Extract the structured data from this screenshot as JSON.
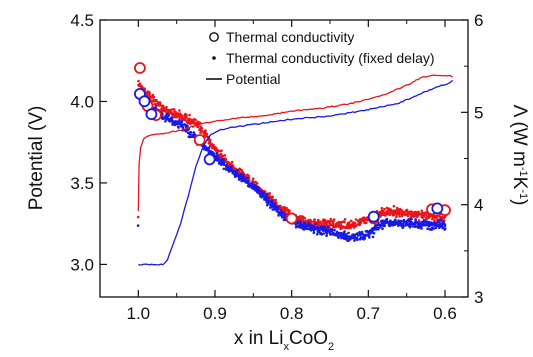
{
  "chart_data": {
    "type": "scatter",
    "x_reversed": true,
    "xlim": [
      1.05,
      0.57
    ],
    "ylim_left": [
      2.8,
      4.5
    ],
    "ylim_right": [
      3,
      6
    ],
    "x_ticks": [
      {
        "value": 1.0,
        "label": "1.0"
      },
      {
        "value": 0.9,
        "label": "0.9"
      },
      {
        "value": 0.8,
        "label": "0.8"
      },
      {
        "value": 0.7,
        "label": "0.7"
      },
      {
        "value": 0.6,
        "label": "0.6"
      }
    ],
    "y_ticks_left": [
      {
        "value": 3.0,
        "label": "3.0"
      },
      {
        "value": 3.5,
        "label": "3.5"
      },
      {
        "value": 4.0,
        "label": "4.0"
      },
      {
        "value": 4.5,
        "label": "4.5"
      }
    ],
    "y_ticks_right": [
      {
        "value": 3,
        "label": "3"
      },
      {
        "value": 4,
        "label": "4"
      },
      {
        "value": 5,
        "label": "5"
      },
      {
        "value": 6,
        "label": "6"
      }
    ],
    "xlabel": {
      "main": "x in Li",
      "sub1": "x",
      "mid": "CoO",
      "sub2": "2"
    },
    "ylabel_left": "Potential (V)",
    "ylabel_right": {
      "main": "Λ (W m",
      "sup1": "-1",
      "mid": "K",
      "sup2": "-1",
      "end": ")"
    },
    "legend": [
      {
        "marker": "circle",
        "label": "Thermal conductivity"
      },
      {
        "marker": "dot",
        "label": "Thermal conductivity (fixed delay)"
      },
      {
        "marker": "line",
        "label": "Potential"
      }
    ],
    "colors": {
      "red": "#e8161b",
      "blue": "#1a1ae6",
      "axis": "#111111"
    },
    "series": [
      {
        "color": "red",
        "kind": "potential",
        "points": [
          [
            1.0,
            3.33
          ],
          [
            0.999,
            3.62
          ],
          [
            0.997,
            3.72
          ],
          [
            0.993,
            3.77
          ],
          [
            0.987,
            3.79
          ],
          [
            0.975,
            3.8
          ],
          [
            0.96,
            3.81
          ],
          [
            0.94,
            3.83
          ],
          [
            0.92,
            3.86
          ],
          [
            0.9,
            3.88
          ],
          [
            0.87,
            3.9
          ],
          [
            0.84,
            3.91
          ],
          [
            0.8,
            3.94
          ],
          [
            0.76,
            3.96
          ],
          [
            0.72,
            3.99
          ],
          [
            0.68,
            4.04
          ],
          [
            0.65,
            4.1
          ],
          [
            0.63,
            4.15
          ],
          [
            0.61,
            4.16
          ],
          [
            0.595,
            4.16
          ],
          [
            0.59,
            4.15
          ]
        ]
      },
      {
        "color": "blue",
        "kind": "potential",
        "points": [
          [
            1.0,
            3.0
          ],
          [
            0.985,
            3.0
          ],
          [
            0.968,
            3.0
          ],
          [
            0.962,
            3.03
          ],
          [
            0.955,
            3.12
          ],
          [
            0.945,
            3.25
          ],
          [
            0.935,
            3.42
          ],
          [
            0.925,
            3.6
          ],
          [
            0.915,
            3.73
          ],
          [
            0.905,
            3.8
          ],
          [
            0.895,
            3.82
          ],
          [
            0.88,
            3.84
          ],
          [
            0.85,
            3.86
          ],
          [
            0.8,
            3.89
          ],
          [
            0.75,
            3.91
          ],
          [
            0.7,
            3.95
          ],
          [
            0.66,
            3.99
          ],
          [
            0.63,
            4.05
          ],
          [
            0.61,
            4.09
          ],
          [
            0.595,
            4.11
          ],
          [
            0.59,
            4.13
          ]
        ]
      },
      {
        "color": "red",
        "kind": "conductivity_fixed_delay",
        "points": [
          [
            1.0,
            5.3
          ],
          [
            0.98,
            5.12
          ],
          [
            0.96,
            5.0
          ],
          [
            0.94,
            4.95
          ],
          [
            0.92,
            4.85
          ],
          [
            0.9,
            4.6
          ],
          [
            0.88,
            4.42
          ],
          [
            0.86,
            4.3
          ],
          [
            0.84,
            4.15
          ],
          [
            0.82,
            4.0
          ],
          [
            0.8,
            3.88
          ],
          [
            0.78,
            3.8
          ],
          [
            0.76,
            3.8
          ],
          [
            0.74,
            3.78
          ],
          [
            0.72,
            3.78
          ],
          [
            0.7,
            3.85
          ],
          [
            0.68,
            3.92
          ],
          [
            0.66,
            3.92
          ],
          [
            0.64,
            3.9
          ],
          [
            0.62,
            3.88
          ],
          [
            0.6,
            3.85
          ]
        ],
        "spread": 0.07
      },
      {
        "color": "blue",
        "kind": "conductivity_fixed_delay",
        "points": [
          [
            1.0,
            5.15
          ],
          [
            0.98,
            5.02
          ],
          [
            0.96,
            4.92
          ],
          [
            0.94,
            4.84
          ],
          [
            0.92,
            4.68
          ],
          [
            0.9,
            4.52
          ],
          [
            0.88,
            4.38
          ],
          [
            0.86,
            4.26
          ],
          [
            0.84,
            4.12
          ],
          [
            0.82,
            3.95
          ],
          [
            0.8,
            3.82
          ],
          [
            0.78,
            3.76
          ],
          [
            0.76,
            3.72
          ],
          [
            0.74,
            3.68
          ],
          [
            0.72,
            3.65
          ],
          [
            0.7,
            3.68
          ],
          [
            0.68,
            3.8
          ],
          [
            0.66,
            3.8
          ],
          [
            0.64,
            3.8
          ],
          [
            0.62,
            3.78
          ],
          [
            0.6,
            3.78
          ]
        ],
        "spread": 0.07
      },
      {
        "color": "red",
        "kind": "conductivity",
        "points": [
          [
            0.998,
            5.48
          ],
          [
            0.988,
            5.07
          ],
          [
            0.977,
            4.97
          ],
          [
            0.92,
            4.7
          ],
          [
            0.8,
            3.85
          ],
          [
            0.693,
            3.85
          ],
          [
            0.617,
            3.95
          ],
          [
            0.6,
            3.94
          ]
        ]
      },
      {
        "color": "blue",
        "kind": "conductivity",
        "points": [
          [
            0.998,
            5.2
          ],
          [
            0.992,
            5.12
          ],
          [
            0.983,
            4.98
          ],
          [
            0.907,
            4.49
          ],
          [
            0.693,
            3.87
          ],
          [
            0.61,
            3.96
          ]
        ]
      }
    ]
  }
}
